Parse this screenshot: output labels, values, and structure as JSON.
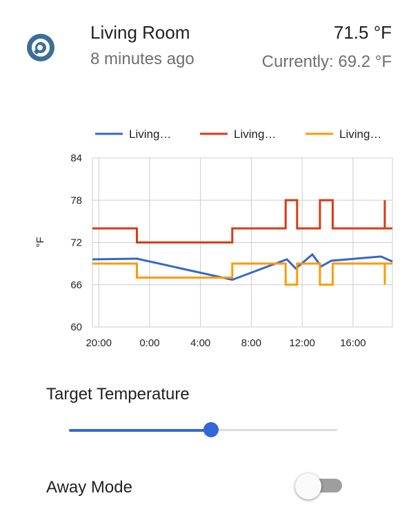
{
  "header": {
    "icon": "thermostat-icon",
    "title": "Living Room",
    "subtitle": "8 minutes ago",
    "target_temp": "71.5 °F",
    "current_temp": "Currently: 69.2 °F"
  },
  "chart_data": {
    "type": "line",
    "ylabel": "°F",
    "xlabel": "",
    "ylim": [
      60,
      84
    ],
    "yticks": [
      60,
      66,
      72,
      78,
      84
    ],
    "xlim": [
      -4.5,
      19.1
    ],
    "xticks": [
      {
        "value": -4,
        "label": "20:00"
      },
      {
        "value": 0,
        "label": "0:00"
      },
      {
        "value": 4,
        "label": "4:00"
      },
      {
        "value": 8,
        "label": "8:00"
      },
      {
        "value": 12,
        "label": "12:00"
      },
      {
        "value": 16,
        "label": "16:00"
      }
    ],
    "grid": true,
    "legend": "top",
    "series": [
      {
        "name": "Living…",
        "color": "#3366cc",
        "step": false,
        "points": [
          [
            -4.5,
            69.6
          ],
          [
            -1,
            69.7
          ],
          [
            6.5,
            66.7
          ],
          [
            10.8,
            69.6
          ],
          [
            11.5,
            68.3
          ],
          [
            12.8,
            70.3
          ],
          [
            13.5,
            68.6
          ],
          [
            14.3,
            69.4
          ],
          [
            18.2,
            70.0
          ],
          [
            19.1,
            69.3
          ]
        ]
      },
      {
        "name": "Living…",
        "color": "#dc3912",
        "step": true,
        "points": [
          [
            -4.5,
            74
          ],
          [
            -1,
            74
          ],
          [
            -1,
            72
          ],
          [
            6.5,
            72
          ],
          [
            6.5,
            74
          ],
          [
            10.7,
            74
          ],
          [
            10.7,
            78
          ],
          [
            11.6,
            78
          ],
          [
            11.6,
            74
          ],
          [
            13.4,
            74
          ],
          [
            13.4,
            78
          ],
          [
            14.4,
            78
          ],
          [
            14.4,
            74
          ],
          [
            18.5,
            74
          ],
          [
            18.5,
            78
          ],
          [
            18.5,
            74
          ],
          [
            19.1,
            74
          ]
        ]
      },
      {
        "name": "Living…",
        "color": "#ff9900",
        "step": true,
        "points": [
          [
            -4.5,
            69
          ],
          [
            -1,
            69
          ],
          [
            -1,
            67
          ],
          [
            6.5,
            67
          ],
          [
            6.5,
            69
          ],
          [
            10.7,
            69
          ],
          [
            10.7,
            66
          ],
          [
            11.6,
            66
          ],
          [
            11.6,
            69
          ],
          [
            13.4,
            69
          ],
          [
            13.4,
            66
          ],
          [
            14.4,
            66
          ],
          [
            14.4,
            69
          ],
          [
            18.5,
            69
          ],
          [
            18.5,
            66
          ],
          [
            18.5,
            69
          ],
          [
            19.1,
            69
          ]
        ]
      }
    ]
  },
  "controls": {
    "target_label": "Target Temperature",
    "target_slider_fraction": 0.53,
    "away_label": "Away Mode",
    "away_on": false
  },
  "colors": {
    "accent": "#3367d6",
    "icon": "#3c6e96"
  }
}
